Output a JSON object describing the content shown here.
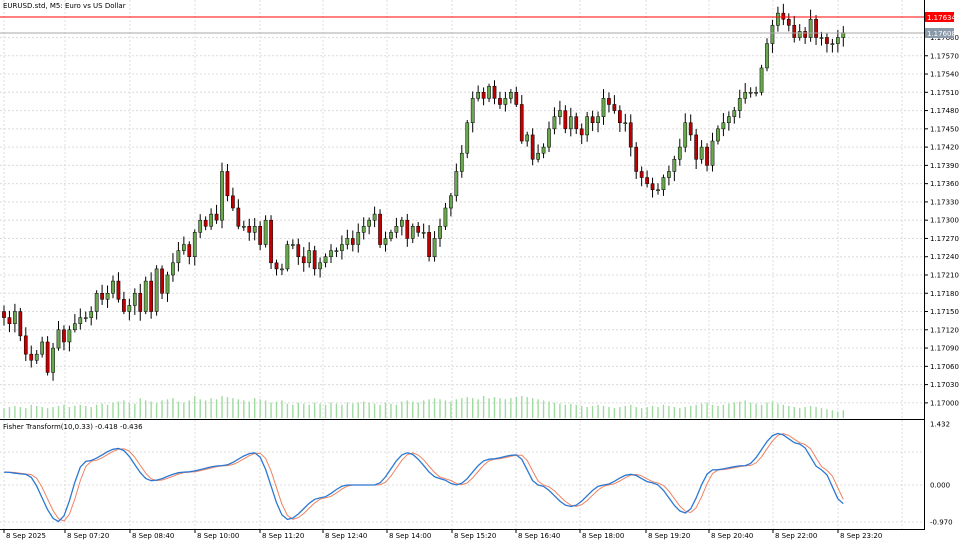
{
  "window": {
    "symbol_title": "EURUSD.std, M5:  Euro vs US Dollar"
  },
  "price_axis": {
    "labels": [
      "1.17600",
      "1.17570",
      "1.17540",
      "1.17510",
      "1.17480",
      "1.17450",
      "1.17420",
      "1.17390",
      "1.17360",
      "1.17330",
      "1.17300",
      "1.17270",
      "1.17240",
      "1.17210",
      "1.17180",
      "1.17150",
      "1.17120",
      "1.17090",
      "1.17060",
      "1.17030",
      "1.17000"
    ],
    "ask_tag": "1.17634",
    "bid_tag": "1.17608"
  },
  "indicator": {
    "title": "Fisher Transform(10,0.33) -0.418 -0.436",
    "scale_labels": [
      "1.432",
      "0.000",
      "-0.970"
    ]
  },
  "time_axis": {
    "labels": [
      "8 Sep 2025",
      "8 Sep 07:20",
      "8 Sep 08:40",
      "8 Sep 10:00",
      "8 Sep 11:20",
      "8 Sep 12:40",
      "8 Sep 14:00",
      "8 Sep 15:20",
      "8 Sep 16:40",
      "8 Sep 18:00",
      "8 Sep 19:20",
      "8 Sep 20:40",
      "8 Sep 22:00",
      "8 Sep 23:20"
    ]
  },
  "colors": {
    "bull_candle": "#6aa84f",
    "bear_candle": "#c00000",
    "wick": "#000000",
    "grid": "#dcdcdc",
    "ask_line": "#ff0000",
    "bid_line": "#a8a8a8",
    "volume": "#9fdb9f",
    "fisher_main": "#2a78d4",
    "fisher_signal": "#f08060"
  },
  "chart_data": {
    "type": "candlestick",
    "symbol": "EURUSD.std",
    "timeframe": "M5",
    "ylim": [
      1.16985,
      1.17655
    ],
    "closes": [
      1.1714,
      1.1713,
      1.1715,
      1.1711,
      1.1708,
      1.1707,
      1.1708,
      1.171,
      1.1705,
      1.1709,
      1.1712,
      1.171,
      1.1712,
      1.1713,
      1.1714,
      1.1714,
      1.1715,
      1.1718,
      1.1717,
      1.1718,
      1.172,
      1.1717,
      1.1715,
      1.1716,
      1.1718,
      1.1715,
      1.172,
      1.1715,
      1.1722,
      1.1718,
      1.1721,
      1.1723,
      1.1725,
      1.1726,
      1.1724,
      1.1728,
      1.173,
      1.1729,
      1.1731,
      1.173,
      1.1738,
      1.1734,
      1.1732,
      1.1729,
      1.1729,
      1.1728,
      1.1729,
      1.1726,
      1.173,
      1.1723,
      1.1722,
      1.1722,
      1.1726,
      1.1726,
      1.1724,
      1.1723,
      1.1725,
      1.1722,
      1.1723,
      1.1724,
      1.1725,
      1.1725,
      1.1726,
      1.1727,
      1.1726,
      1.1728,
      1.1729,
      1.173,
      1.1731,
      1.1726,
      1.1727,
      1.1728,
      1.1729,
      1.173,
      1.1727,
      1.1729,
      1.1728,
      1.1728,
      1.1724,
      1.1727,
      1.1729,
      1.1732,
      1.1734,
      1.1738,
      1.1741,
      1.1746,
      1.175,
      1.1751,
      1.175,
      1.1752,
      1.175,
      1.1749,
      1.175,
      1.1751,
      1.1749,
      1.1743,
      1.1744,
      1.174,
      1.1741,
      1.1742,
      1.1745,
      1.1747,
      1.1748,
      1.1745,
      1.1747,
      1.1745,
      1.1744,
      1.1747,
      1.1746,
      1.1747,
      1.175,
      1.1749,
      1.1748,
      1.1746,
      1.1746,
      1.1742,
      1.1738,
      1.1737,
      1.1736,
      1.1735,
      1.1735,
      1.1737,
      1.1738,
      1.174,
      1.1742,
      1.1746,
      1.1744,
      1.174,
      1.1742,
      1.1739,
      1.1743,
      1.1745,
      1.1746,
      1.1747,
      1.1748,
      1.175,
      1.1751,
      1.1751,
      1.1751,
      1.1755,
      1.1759,
      1.1762,
      1.1764,
      1.1763,
      1.1762,
      1.176,
      1.1761,
      1.176,
      1.1763,
      1.176,
      1.176,
      1.1759,
      1.1759,
      1.176,
      1.17608
    ],
    "volume_relative": [
      0.45,
      0.5,
      0.55,
      0.5,
      0.45,
      0.6,
      0.55,
      0.5,
      0.45,
      0.5,
      0.55,
      0.6,
      0.5,
      0.55,
      0.6,
      0.55,
      0.5,
      0.6,
      0.65,
      0.6,
      0.7,
      0.75,
      0.8,
      0.7,
      0.65,
      0.9,
      0.8,
      0.75,
      0.7,
      0.8,
      0.85,
      0.9,
      0.75,
      0.7,
      0.8,
      1.0,
      0.85,
      0.8,
      0.9,
      0.85,
      1.0,
      0.95,
      0.9,
      0.85,
      0.8,
      0.75,
      0.9,
      0.85,
      0.8,
      0.7,
      0.75,
      0.8,
      0.65,
      0.6,
      0.7,
      0.65,
      0.6,
      0.7,
      0.65,
      0.6,
      0.7,
      0.65,
      0.6,
      0.7,
      0.65,
      0.7,
      0.75,
      0.7,
      0.65,
      0.6,
      0.7,
      0.65,
      0.6,
      0.75,
      0.8,
      0.75,
      0.7,
      0.8,
      0.85,
      0.9,
      0.85,
      0.8,
      0.75,
      0.85,
      0.9,
      0.95,
      0.9,
      0.85,
      1.0,
      0.9,
      0.95,
      0.9,
      0.85,
      0.9,
      0.95,
      1.0,
      0.95,
      0.9,
      0.85,
      0.8,
      0.75,
      0.7,
      0.65,
      0.6,
      0.65,
      0.6,
      0.55,
      0.5,
      0.55,
      0.6,
      0.55,
      0.5,
      0.45,
      0.5,
      0.55,
      0.6,
      0.5,
      0.45,
      0.5,
      0.55,
      0.5,
      0.6,
      0.55,
      0.5,
      0.45,
      0.5,
      0.55,
      0.6,
      0.65,
      0.7,
      0.6,
      0.55,
      0.6,
      0.65,
      0.7,
      0.75,
      0.8,
      0.7,
      0.65,
      0.6,
      0.7,
      0.75,
      0.65,
      0.6,
      0.55,
      0.5,
      0.45,
      0.5,
      0.55,
      0.5,
      0.45,
      0.4,
      0.35,
      0.3,
      0.35
    ],
    "fisher_control_points": [
      [
        0,
        0.3
      ],
      [
        4,
        0.25
      ],
      [
        10,
        -0.85
      ],
      [
        15,
        0.55
      ],
      [
        21,
        0.85
      ],
      [
        27,
        0.1
      ],
      [
        33,
        0.3
      ],
      [
        40,
        0.45
      ],
      [
        46,
        0.75
      ],
      [
        52,
        -0.8
      ],
      [
        58,
        -0.3
      ],
      [
        63,
        0.0
      ],
      [
        68,
        0.0
      ],
      [
        74,
        0.75
      ],
      [
        80,
        0.15
      ],
      [
        83,
        0.0
      ],
      [
        89,
        0.6
      ],
      [
        94,
        0.7
      ],
      [
        98,
        0.0
      ],
      [
        104,
        -0.5
      ],
      [
        110,
        0.0
      ],
      [
        115,
        0.25
      ],
      [
        119,
        0.05
      ],
      [
        125,
        -0.65
      ],
      [
        130,
        0.35
      ],
      [
        136,
        0.45
      ],
      [
        142,
        1.2
      ],
      [
        146,
        0.95
      ],
      [
        150,
        0.35
      ],
      [
        154,
        -0.436
      ]
    ]
  }
}
